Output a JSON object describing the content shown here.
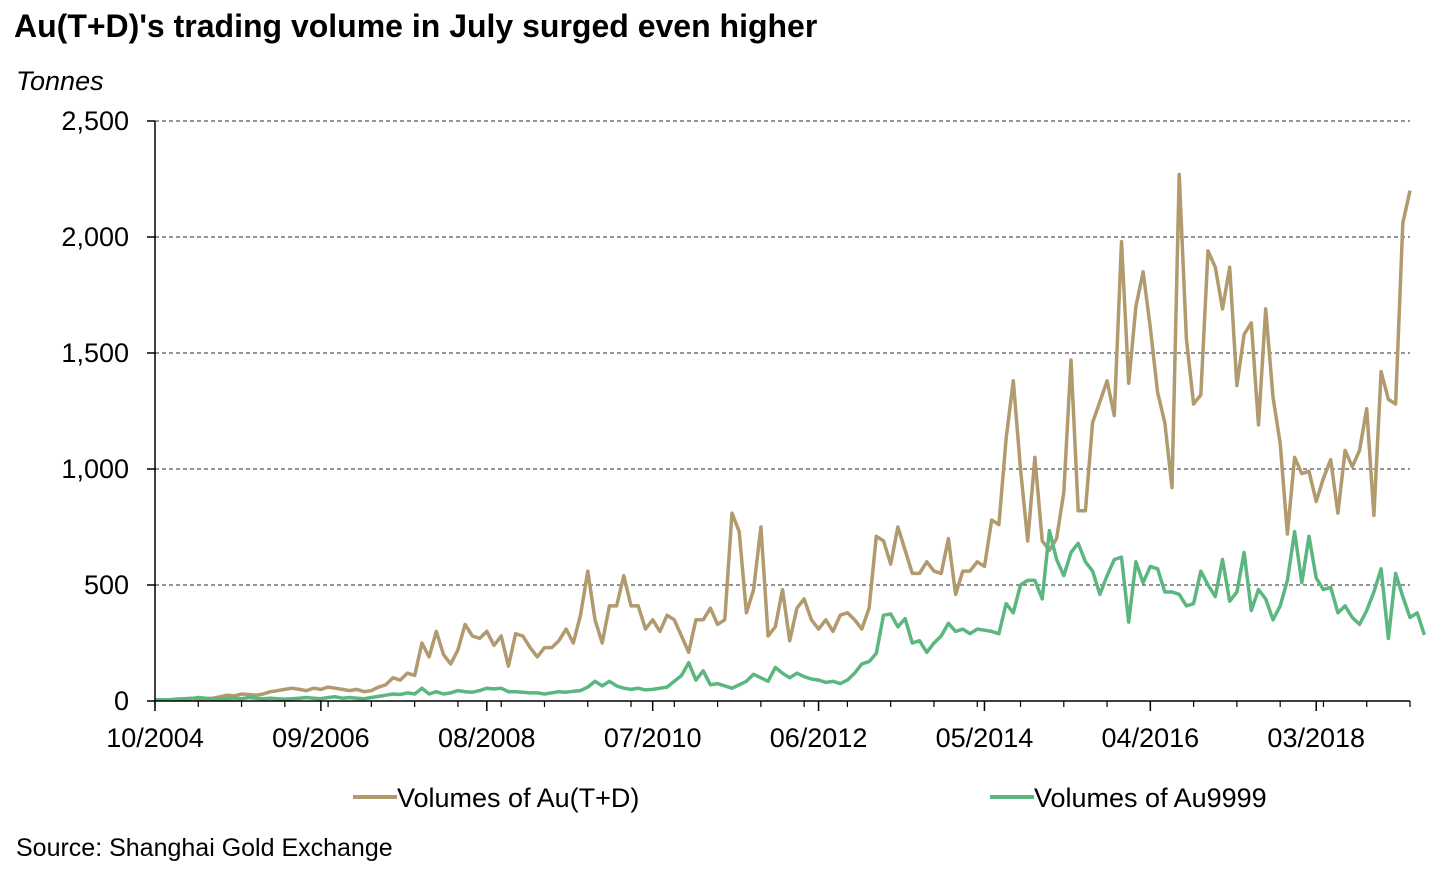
{
  "title": "Au(T+D)'s trading volume in July surged even higher",
  "unit_label": "Tonnes",
  "source": "Source: Shanghai Gold Exchange",
  "chart_data": {
    "type": "line",
    "title": "Au(T+D)'s trading volume in July surged even higher",
    "xlabel": "",
    "ylabel": "Tonnes",
    "ylim": [
      0,
      2500
    ],
    "yticks": [
      0,
      500,
      1000,
      1500,
      2000,
      2500
    ],
    "ytick_labels": [
      "0",
      "500",
      "1,000",
      "1,500",
      "2,000",
      "2,500"
    ],
    "xtick_labels": [
      "10/2004",
      "09/2006",
      "08/2008",
      "07/2010",
      "06/2012",
      "05/2014",
      "04/2016",
      "03/2018"
    ],
    "x_start": "10/2004",
    "x_end": "07/2019",
    "grid": "horizontal dashed",
    "legend": "bottom",
    "series": [
      {
        "name": "Volumes of Au(T+D)",
        "color": "#b09a6e",
        "values": [
          5,
          5,
          5,
          8,
          10,
          12,
          8,
          10,
          12,
          18,
          25,
          22,
          30,
          28,
          25,
          30,
          40,
          45,
          50,
          55,
          50,
          45,
          55,
          50,
          60,
          55,
          50,
          45,
          50,
          40,
          45,
          60,
          70,
          100,
          90,
          120,
          110,
          250,
          190,
          300,
          200,
          160,
          220,
          330,
          280,
          270,
          300,
          240,
          280,
          150,
          290,
          280,
          230,
          190,
          230,
          230,
          260,
          310,
          250,
          370,
          560,
          350,
          250,
          410,
          410,
          540,
          410,
          410,
          310,
          350,
          300,
          370,
          350,
          280,
          210,
          350,
          350,
          400,
          330,
          350,
          810,
          730,
          380,
          480,
          750,
          280,
          320,
          480,
          260,
          400,
          440,
          350,
          310,
          350,
          300,
          370,
          380,
          350,
          310,
          400,
          710,
          690,
          590,
          750,
          650,
          550,
          550,
          600,
          560,
          550,
          700,
          460,
          560,
          560,
          600,
          580,
          780,
          760,
          1130,
          1380,
          1000,
          690,
          1050,
          690,
          650,
          700,
          900,
          1470,
          820,
          820,
          1200,
          1290,
          1380,
          1230,
          1980,
          1370,
          1700,
          1850,
          1610,
          1330,
          1200,
          920,
          2270,
          1560,
          1280,
          1320,
          1940,
          1870,
          1690,
          1870,
          1360,
          1580,
          1630,
          1190,
          1690,
          1310,
          1110,
          720,
          1050,
          980,
          990,
          860,
          960,
          1040,
          810,
          1080,
          1010,
          1080,
          1260,
          800,
          1420,
          1300,
          1280,
          2060,
          2200
        ]
      },
      {
        "name": "Volumes of Au9999",
        "color": "#5bb77f",
        "values": [
          5,
          5,
          5,
          8,
          8,
          10,
          15,
          12,
          10,
          8,
          10,
          12,
          10,
          15,
          12,
          10,
          12,
          10,
          8,
          10,
          12,
          15,
          12,
          10,
          15,
          18,
          12,
          15,
          12,
          10,
          15,
          20,
          25,
          30,
          28,
          35,
          30,
          55,
          30,
          40,
          30,
          35,
          45,
          40,
          38,
          45,
          55,
          52,
          55,
          40,
          40,
          38,
          35,
          35,
          30,
          35,
          40,
          38,
          42,
          45,
          60,
          85,
          65,
          85,
          65,
          55,
          50,
          55,
          48,
          50,
          55,
          60,
          85,
          110,
          165,
          90,
          130,
          70,
          75,
          65,
          55,
          70,
          85,
          115,
          100,
          85,
          145,
          120,
          100,
          120,
          105,
          95,
          90,
          80,
          85,
          75,
          90,
          120,
          160,
          170,
          205,
          370,
          375,
          320,
          355,
          250,
          260,
          210,
          250,
          280,
          335,
          300,
          310,
          290,
          310,
          305,
          300,
          290,
          420,
          380,
          500,
          520,
          520,
          440,
          735,
          610,
          540,
          640,
          680,
          600,
          560,
          460,
          540,
          610,
          620,
          340,
          600,
          510,
          580,
          570,
          470,
          470,
          460,
          410,
          420,
          560,
          500,
          450,
          610,
          430,
          470,
          640,
          390,
          480,
          440,
          350,
          410,
          520,
          730,
          510,
          710,
          530,
          480,
          490,
          380,
          410,
          360,
          330,
          390,
          470,
          570,
          270,
          550,
          450,
          360,
          380,
          285
        ]
      }
    ]
  }
}
